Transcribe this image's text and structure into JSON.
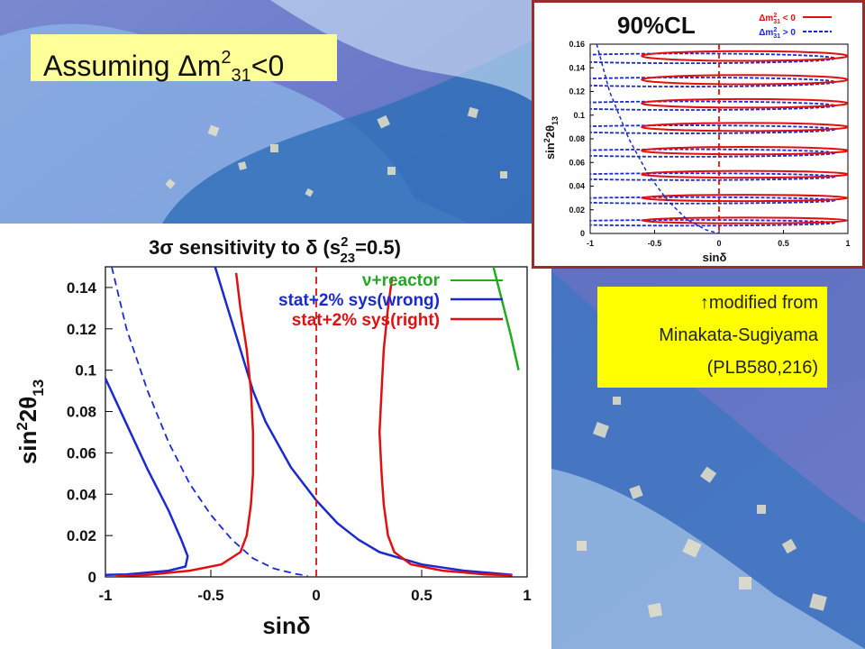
{
  "slide": {
    "title_prefix": "Assuming Δm",
    "title_sup": "2",
    "title_sub": "31",
    "title_suffix": "<0",
    "credit_lines": [
      "↑modified from",
      "Minakata-Sugiyama",
      "(PLB580,216)"
    ]
  },
  "colors": {
    "green": "#22aa22",
    "blue": "#1a2ad0",
    "red": "#e01010",
    "title_box": "#ffff99",
    "credit_box": "#ffff00",
    "inset_border": "#9b2c2c"
  },
  "chart_data": [
    {
      "type": "line",
      "title": "3σ sensitivity to δ (s²₂₃=0.5)",
      "title_parts": {
        "main": "3σ sensitivity to δ  (s",
        "sup": "2",
        "sub": "23",
        "end": "=0.5)"
      },
      "xlabel": "sinδ",
      "ylabel": "sin²2θ₁₃",
      "ylabel_parts": {
        "main": "sin",
        "sup": "2",
        "mid": "2θ",
        "sub": "13"
      },
      "xlim": [
        -1,
        1
      ],
      "ylim": [
        0,
        0.15
      ],
      "x_ticks": [
        "-1",
        "-0.5",
        "0",
        "0.5",
        "1"
      ],
      "y_ticks": [
        "0",
        "0.02",
        "0.04",
        "0.06",
        "0.08",
        "0.1",
        "0.12",
        "0.14"
      ],
      "legend_position": "top-right",
      "series": [
        {
          "name": "ν+reactor",
          "color": "#22aa22",
          "points": [
            [
              0.84,
              0.15
            ],
            [
              0.87,
              0.138
            ],
            [
              0.92,
              0.118
            ],
            [
              0.96,
              0.1
            ]
          ]
        },
        {
          "name": "stat+2% sys(wrong)",
          "color": "#1a2ad0",
          "points": [
            [
              -1.0,
              0.096
            ],
            [
              -0.9,
              0.074
            ],
            [
              -0.8,
              0.052
            ],
            [
              -0.7,
              0.032
            ],
            [
              -0.64,
              0.018
            ],
            [
              -0.61,
              0.01
            ],
            [
              -0.62,
              0.005
            ],
            [
              -0.7,
              0.003
            ],
            [
              -0.9,
              0.0012
            ],
            [
              -1.0,
              0.001
            ]
          ]
        },
        {
          "name": "stat+2% sys(wrong)",
          "color": "#1a2ad0",
          "points": [
            [
              -0.48,
              0.15
            ],
            [
              -0.42,
              0.13
            ],
            [
              -0.36,
              0.11
            ],
            [
              -0.3,
              0.09
            ],
            [
              -0.24,
              0.075
            ],
            [
              -0.12,
              0.053
            ],
            [
              0.0,
              0.037
            ],
            [
              0.1,
              0.026
            ],
            [
              0.2,
              0.018
            ],
            [
              0.3,
              0.012
            ],
            [
              0.5,
              0.006
            ],
            [
              0.7,
              0.003
            ],
            [
              0.93,
              0.001
            ]
          ]
        },
        {
          "name": "",
          "color": "#1a2ad0",
          "dashed": true,
          "points": [
            [
              -0.97,
              0.15
            ],
            [
              -0.9,
              0.12
            ],
            [
              -0.8,
              0.09
            ],
            [
              -0.7,
              0.065
            ],
            [
              -0.6,
              0.045
            ],
            [
              -0.5,
              0.03
            ],
            [
              -0.4,
              0.018
            ],
            [
              -0.3,
              0.009
            ],
            [
              -0.2,
              0.004
            ],
            [
              -0.1,
              0.0015
            ],
            [
              -0.04,
              0.0005
            ]
          ]
        },
        {
          "name": "stat+2% sys(right)",
          "color": "#e01010",
          "points": [
            [
              -0.38,
              0.147
            ],
            [
              -0.36,
              0.13
            ],
            [
              -0.33,
              0.11
            ],
            [
              -0.31,
              0.09
            ],
            [
              -0.3,
              0.07
            ],
            [
              -0.3,
              0.05
            ],
            [
              -0.31,
              0.035
            ],
            [
              -0.33,
              0.02
            ],
            [
              -0.36,
              0.012
            ],
            [
              -0.45,
              0.006
            ],
            [
              -0.6,
              0.003
            ],
            [
              -0.8,
              0.001
            ],
            [
              -0.95,
              0.0005
            ]
          ]
        },
        {
          "name": "stat+2% sys(right)",
          "color": "#e01010",
          "points": [
            [
              0.36,
              0.145
            ],
            [
              0.34,
              0.13
            ],
            [
              0.32,
              0.11
            ],
            [
              0.31,
              0.09
            ],
            [
              0.3,
              0.07
            ],
            [
              0.31,
              0.05
            ],
            [
              0.32,
              0.035
            ],
            [
              0.34,
              0.02
            ],
            [
              0.37,
              0.012
            ],
            [
              0.45,
              0.006
            ],
            [
              0.6,
              0.003
            ],
            [
              0.8,
              0.0012
            ],
            [
              0.93,
              0.0008
            ]
          ]
        },
        {
          "name": "",
          "color": "#e01010",
          "dashed": true,
          "points": [
            [
              0.0,
              0.0
            ],
            [
              0.0,
              0.15
            ]
          ]
        }
      ]
    },
    {
      "type": "line",
      "title": "90%CL",
      "xlabel": "sinδ",
      "ylabel": "sin²2θ₁₃",
      "ylabel_parts": {
        "main": "sin",
        "sup": "2",
        "mid": "2θ",
        "sub": "13"
      },
      "xlim": [
        -1,
        1
      ],
      "ylim": [
        0,
        0.16
      ],
      "x_ticks": [
        "-1",
        "-0.5",
        "0",
        "0.5",
        "1"
      ],
      "y_ticks": [
        "0",
        "0.02",
        "0.04",
        "0.06",
        "0.08",
        "0.1",
        "0.12",
        "0.14",
        "0.16"
      ],
      "legend_position": "top-right",
      "legend": [
        {
          "text_main": "Δm",
          "sup": "2",
          "sub": "31",
          "rel": " < 0",
          "color": "#e01010",
          "dashed": false
        },
        {
          "text_main": "Δm",
          "sup": "2",
          "sub": "31",
          "rel": " > 0",
          "color": "#1a2ad0",
          "dashed": true
        }
      ],
      "contour_centers": [
        0.011,
        0.03,
        0.05,
        0.07,
        0.09,
        0.11,
        0.13,
        0.15
      ],
      "blue_envelope": [
        [
          -0.95,
          0.16
        ],
        [
          -0.85,
          0.12
        ],
        [
          -0.7,
          0.08
        ],
        [
          -0.55,
          0.05
        ],
        [
          -0.4,
          0.028
        ],
        [
          -0.25,
          0.012
        ],
        [
          -0.1,
          0.003
        ],
        [
          0.0,
          0.0
        ]
      ],
      "vertical_marker_x": 0.0
    }
  ]
}
